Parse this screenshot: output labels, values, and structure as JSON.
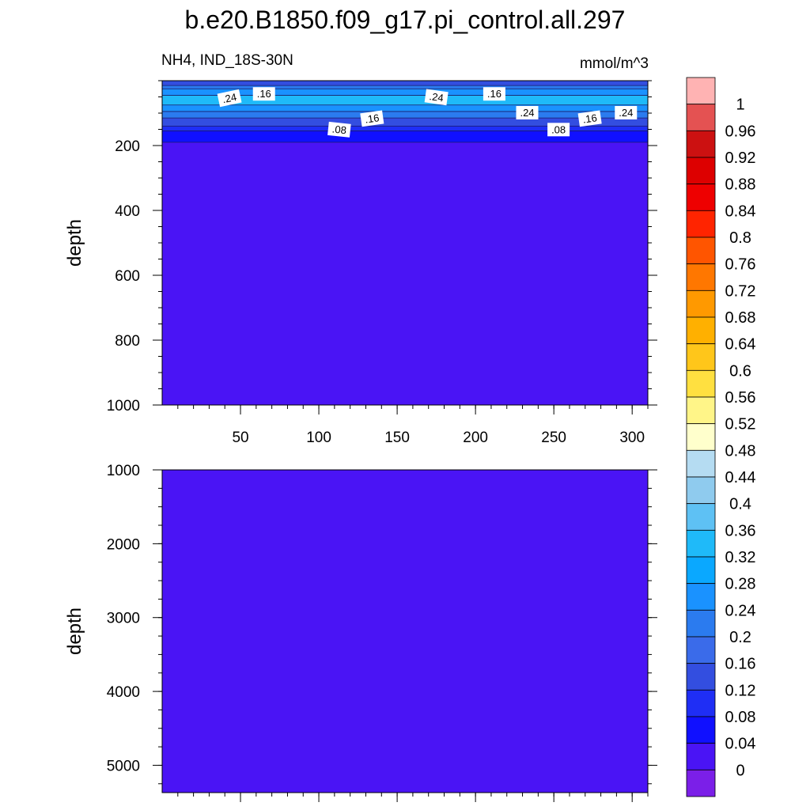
{
  "chart_data": [
    {
      "type": "heatmap",
      "title": "b.e20.B1850.f09_g17.pi_control.all.297",
      "left_subtitle": "NH4, IND_18S-30N",
      "right_subtitle": "mmol/m^3",
      "xlabel": "",
      "ylabel": "depth",
      "xlim": [
        0,
        310
      ],
      "ylim": [
        1000,
        0
      ],
      "x_ticks": [
        50,
        100,
        150,
        200,
        250,
        300
      ],
      "y_ticks": [
        200,
        400,
        600,
        800,
        1000
      ],
      "layers": [
        {
          "top": 0,
          "bottom": 15,
          "value": 0.14
        },
        {
          "top": 15,
          "bottom": 25,
          "value": 0.2
        },
        {
          "top": 25,
          "bottom": 45,
          "value": 0.27
        },
        {
          "top": 45,
          "bottom": 75,
          "value": 0.32
        },
        {
          "top": 75,
          "bottom": 95,
          "value": 0.27
        },
        {
          "top": 95,
          "bottom": 115,
          "value": 0.2
        },
        {
          "top": 115,
          "bottom": 140,
          "value": 0.14
        },
        {
          "top": 140,
          "bottom": 155,
          "value": 0.1
        },
        {
          "top": 155,
          "bottom": 190,
          "value": 0.06
        },
        {
          "top": 190,
          "bottom": 1000,
          "value": 0.02
        }
      ],
      "contour_labels": [
        {
          "text": ".24",
          "x": 43,
          "depth": 55,
          "angle": -12
        },
        {
          "text": ".16",
          "x": 65,
          "depth": 42,
          "angle": 0
        },
        {
          "text": ".24",
          "x": 175,
          "depth": 52,
          "angle": 8
        },
        {
          "text": ".16",
          "x": 212,
          "depth": 42,
          "angle": 0
        },
        {
          "text": ".16",
          "x": 134,
          "depth": 118,
          "angle": -8
        },
        {
          "text": ".24",
          "x": 233,
          "depth": 100,
          "angle": 0
        },
        {
          "text": ".08",
          "x": 113,
          "depth": 152,
          "angle": 6
        },
        {
          "text": ".08",
          "x": 253,
          "depth": 152,
          "angle": 0
        },
        {
          "text": ".16",
          "x": 273,
          "depth": 118,
          "angle": -8
        },
        {
          "text": ".24",
          "x": 296,
          "depth": 100,
          "angle": 0
        }
      ]
    },
    {
      "type": "heatmap",
      "xlabel": "",
      "ylabel": "depth",
      "xlim": [
        0,
        310
      ],
      "ylim": [
        5370,
        1000
      ],
      "x_ticks": [
        50,
        100,
        150,
        200,
        250,
        300
      ],
      "y_ticks": [
        1000,
        2000,
        3000,
        4000,
        5000
      ],
      "layers": [
        {
          "top": 1000,
          "bottom": 5370,
          "value": 0.02
        }
      ]
    }
  ],
  "colorbar": {
    "labels": [
      "1",
      "0.96",
      "0.92",
      "0.88",
      "0.84",
      "0.8",
      "0.76",
      "0.72",
      "0.68",
      "0.64",
      "0.6",
      "0.56",
      "0.52",
      "0.48",
      "0.44",
      "0.4",
      "0.36",
      "0.32",
      "0.28",
      "0.24",
      "0.2",
      "0.16",
      "0.12",
      "0.08",
      "0.04",
      "0"
    ],
    "colors": [
      "#ffb3b3",
      "#e45252",
      "#cc1111",
      "#dd0000",
      "#ee0000",
      "#ff2400",
      "#ff5500",
      "#ff7700",
      "#ff9900",
      "#ffb000",
      "#ffc61a",
      "#ffe040",
      "#fff588",
      "#ffffcc",
      "#b5dcf2",
      "#8fcbee",
      "#5ec1f4",
      "#1fbaf9",
      "#0aa8ff",
      "#1a92ff",
      "#2b7bef",
      "#3a6bea",
      "#334ee0",
      "#1f2ef5",
      "#1010ff",
      "#4a14f5",
      "#7b1fe8"
    ]
  }
}
